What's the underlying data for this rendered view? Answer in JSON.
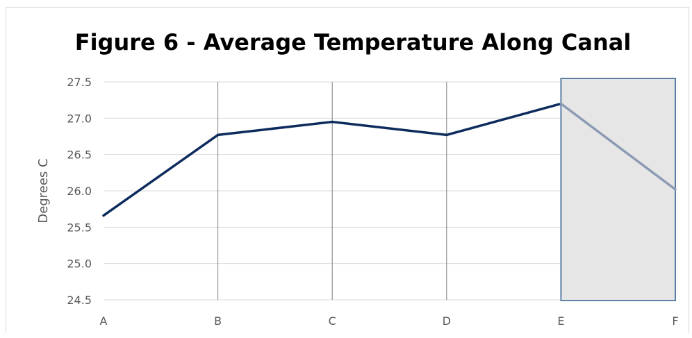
{
  "chart_data": {
    "type": "line",
    "title": "Figure 6 - Average Temperature Along Canal",
    "xlabel": "",
    "ylabel": "Degrees C",
    "categories": [
      "A",
      "B",
      "C",
      "D",
      "E",
      "F"
    ],
    "series": [
      {
        "values": [
          25.66,
          26.77,
          26.95,
          26.77,
          27.2,
          26.02
        ]
      }
    ],
    "ylim": [
      24.5,
      27.5
    ],
    "yticks": [
      "24.5",
      "25.0",
      "25.5",
      "26.0",
      "26.5",
      "27.0",
      "27.5"
    ],
    "grid": {
      "horizontal": true,
      "vertical": true
    },
    "highlight": {
      "from_category": "E",
      "to_category": "F"
    },
    "colors": {
      "line": "#0d2b5c",
      "line_highlighted": "#8c9bb3",
      "highlight_fill": "#e6e6e6",
      "highlight_border": "#5b7fa5",
      "grid_horizontal": "#d9d9d9",
      "grid_vertical": "#7f7f7f"
    }
  }
}
